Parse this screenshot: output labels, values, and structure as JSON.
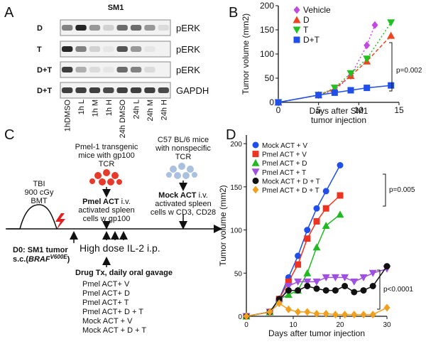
{
  "panel_labels": [
    "A",
    "B",
    "C",
    "D"
  ],
  "blot": {
    "title": "SM1",
    "rows": [
      {
        "label": "D",
        "protein": "pERK"
      },
      {
        "label": "T",
        "protein": "pERK"
      },
      {
        "label": "D+T",
        "protein": "pERK"
      },
      {
        "label": "D+T",
        "protein": "GAPDH"
      }
    ],
    "lanes": [
      "1hDMSO",
      "1h L",
      "1h M",
      "1h H",
      "24h DMSO",
      "24h L",
      "24h M",
      "24h H"
    ]
  },
  "diagram": {
    "pmel_source": [
      "Pmel-1 transgenic",
      "mice with gp100",
      "TCR"
    ],
    "mock_source": [
      "C57 BL/6 mice",
      "with nonspecific",
      "TCR"
    ],
    "conditioning": [
      "TBI",
      "900 cGy",
      "BMT"
    ],
    "pmel_act": {
      "bold": "Pmel ACT",
      "rest": " i.v.",
      "lines": [
        "activated spleen",
        "cells w gp100"
      ]
    },
    "mock_act": {
      "bold": "Mock ACT",
      "rest": " i.v.",
      "lines": [
        "activated spleen",
        "cells w CD3, CD28"
      ]
    },
    "tumor": {
      "line": "D0: SM1 tumor",
      "prefix": "s.c.(",
      "gene": "BRAF",
      "mutation": "V600E",
      "suffix": ")"
    },
    "il2": "High dose IL-2 i.p.",
    "drug": "Drug Tx, daily oral gavage",
    "groups": [
      "Pmel ACT+ V",
      "Pmel ACT+ D",
      "Pmel ACT+ T",
      "Pmel ACT+ D + T",
      "Mock ACT + V",
      "Mock ACT + D + T"
    ]
  },
  "chart_data": [
    {
      "type": "line",
      "xlabel": [
        "Days after SM1",
        "tumor injection"
      ],
      "ylabel": "Tumor volume (mm2)",
      "xlim": [
        0,
        15
      ],
      "xticks": [
        0,
        5,
        10,
        15
      ],
      "ylim": [
        0,
        200
      ],
      "yticks": [
        0,
        50,
        100,
        150,
        200
      ],
      "legend": "upper left",
      "annotations": [
        "p=0.002"
      ],
      "series": [
        {
          "name": "Vehicle",
          "color": "#c04ae0",
          "marker": "diamond",
          "dash": "dotted",
          "x": [
            0,
            5,
            7,
            9,
            11,
            12
          ],
          "values": [
            0,
            15,
            25,
            55,
            118,
            160
          ]
        },
        {
          "name": "D",
          "color": "#ee4422",
          "marker": "triangle-up",
          "dash": "dashed",
          "x": [
            0,
            5,
            7,
            9,
            11,
            14
          ],
          "values": [
            0,
            15,
            28,
            55,
            85,
            138
          ]
        },
        {
          "name": "T",
          "color": "#22c022",
          "marker": "triangle-down",
          "dash": "dotted",
          "x": [
            0,
            5,
            7,
            9,
            11,
            14
          ],
          "values": [
            0,
            15,
            30,
            60,
            90,
            165
          ]
        },
        {
          "name": "D+T",
          "color": "#1f4fe8",
          "marker": "square",
          "dash": "solid",
          "x": [
            0,
            5,
            7,
            9,
            11,
            14
          ],
          "values": [
            0,
            15,
            20,
            25,
            30,
            35
          ]
        }
      ]
    },
    {
      "type": "line",
      "xlabel": [
        "Days after tumor injection"
      ],
      "ylabel": "Tumor volume (mm2)",
      "xlim": [
        0,
        30
      ],
      "xticks": [
        0,
        10,
        20,
        30
      ],
      "ylim": [
        0,
        210
      ],
      "yticks": [
        0,
        50,
        100,
        150,
        200
      ],
      "legend": "upper left",
      "annotations": [
        "p=0.005",
        "p<0.0001"
      ],
      "series": [
        {
          "name": "Mock ACT + V",
          "color": "#1f4fe8",
          "marker": "circle",
          "dash": "solid",
          "x": [
            0,
            5,
            7,
            9,
            11,
            13,
            15,
            17,
            20
          ],
          "values": [
            0,
            5,
            20,
            45,
            70,
            100,
            125,
            145,
            175
          ]
        },
        {
          "name": "Pmel ACT + V",
          "color": "#ee3322",
          "marker": "square",
          "dash": "solid",
          "x": [
            0,
            5,
            7,
            9,
            11,
            13,
            15,
            17,
            20
          ],
          "values": [
            0,
            5,
            20,
            40,
            60,
            90,
            110,
            125,
            140
          ]
        },
        {
          "name": "Pmel ACT + D",
          "color": "#22b822",
          "marker": "triangle-up",
          "dash": "solid",
          "x": [
            0,
            5,
            7,
            9,
            11,
            13,
            15,
            17,
            20
          ],
          "values": [
            0,
            5,
            20,
            25,
            30,
            50,
            80,
            105,
            118
          ]
        },
        {
          "name": "Pmel ACT + T",
          "color": "#a050e0",
          "marker": "triangle-down",
          "dash": "solid",
          "x": [
            0,
            5,
            7,
            9,
            11,
            13,
            15,
            17,
            19,
            21,
            23,
            25,
            27,
            30
          ],
          "values": [
            0,
            5,
            15,
            35,
            40,
            40,
            40,
            45,
            45,
            45,
            40,
            45,
            50,
            55
          ]
        },
        {
          "name": "Mock ACT + D + T",
          "color": "#111111",
          "marker": "circle",
          "dash": "solid",
          "x": [
            0,
            5,
            7,
            9,
            11,
            13,
            15,
            17,
            19,
            21,
            23,
            25,
            27,
            30
          ],
          "values": [
            0,
            5,
            20,
            30,
            30,
            35,
            32,
            30,
            30,
            35,
            28,
            30,
            35,
            58
          ]
        },
        {
          "name": "Pmel ACT + D + T",
          "color": "#f0a020",
          "marker": "diamond",
          "dash": "solid",
          "x": [
            0,
            5,
            7,
            9,
            11,
            13,
            15,
            17,
            19,
            21,
            23,
            25,
            27,
            30
          ],
          "values": [
            0,
            5,
            15,
            8,
            5,
            5,
            3,
            3,
            2,
            2,
            2,
            2,
            2,
            10
          ]
        }
      ]
    }
  ]
}
